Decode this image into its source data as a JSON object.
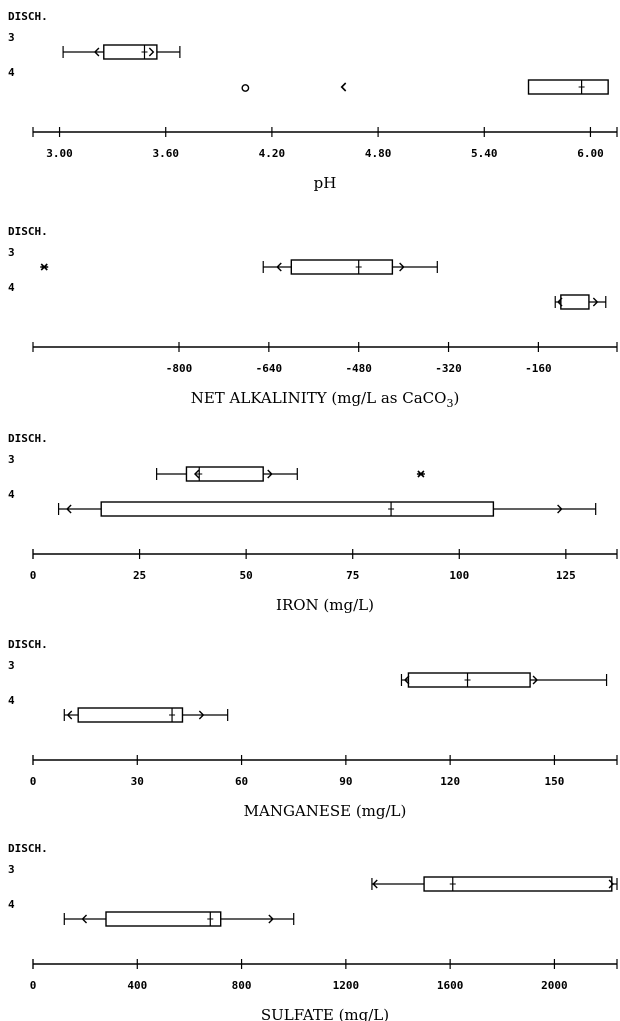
{
  "chart_data": [
    {
      "type": "boxplot",
      "row_header": "DISCH.",
      "categories": [
        "3",
        "4"
      ],
      "xlabel": "pH",
      "xlim": [
        2.85,
        6.15
      ],
      "ticks": [
        3.0,
        3.6,
        4.2,
        4.8,
        5.4,
        6.0
      ],
      "tick_labels": [
        "3.00",
        "3.60",
        "4.20",
        "4.80",
        "5.40",
        "6.00"
      ],
      "boxes": [
        {
          "category": "3",
          "whisker_low": 3.02,
          "q1": 3.25,
          "median": 3.48,
          "q3": 3.55,
          "whisker_high": 3.68,
          "lower_cap": 3.2,
          "upper_cap": 3.53
        },
        {
          "category": "4",
          "q1": 5.65,
          "median": 5.95,
          "q3": 6.1
        }
      ],
      "outliers": [
        {
          "category": "4",
          "value": 4.05,
          "marker": "o"
        },
        {
          "category": "4",
          "value": 4.6,
          "marker": "<"
        }
      ]
    },
    {
      "type": "boxplot",
      "row_header": "DISCH.",
      "categories": [
        "3",
        "4"
      ],
      "xlabel": "NET ALKALINITY (mg/L as CaCO",
      "xlabel_sub": "3",
      "xlabel_end": ")",
      "xlim": [
        -1060,
        -20
      ],
      "ticks": [
        -800,
        -640,
        -480,
        -320,
        -160
      ],
      "tick_labels": [
        "-800",
        "-640",
        "-480",
        "-320",
        "-160"
      ],
      "boxes": [
        {
          "category": "3",
          "whisker_low": -650,
          "q1": -600,
          "median": -480,
          "q3": -420,
          "whisker_high": -340,
          "lower_cap": -625,
          "upper_cap": -400
        },
        {
          "category": "4",
          "whisker_low": -130,
          "q1": -120,
          "q3": -70,
          "whisker_high": -40,
          "lower_cap": -125,
          "upper_cap": -55
        }
      ],
      "outliers": [
        {
          "category": "3",
          "value": -1040,
          "marker": "*"
        }
      ]
    },
    {
      "type": "boxplot",
      "row_header": "DISCH.",
      "categories": [
        "3",
        "4"
      ],
      "xlabel": "IRON (mg/L)",
      "xlim": [
        0,
        137
      ],
      "ticks": [
        0,
        25,
        50,
        75,
        100,
        125
      ],
      "tick_labels": [
        "0",
        "25",
        "50",
        "75",
        "100",
        "125"
      ],
      "boxes": [
        {
          "category": "3",
          "whisker_low": 29,
          "q1": 36,
          "median": 39,
          "q3": 54,
          "whisker_high": 62,
          "lower_cap": 38,
          "upper_cap": 56
        },
        {
          "category": "4",
          "whisker_low": 6,
          "q1": 16,
          "median": 84,
          "q3": 108,
          "whisker_high": 132,
          "lower_cap": 8,
          "upper_cap": 124
        }
      ],
      "outliers": [
        {
          "category": "3",
          "value": 91,
          "marker": "*"
        }
      ]
    },
    {
      "type": "boxplot",
      "row_header": "DISCH.",
      "categories": [
        "3",
        "4"
      ],
      "xlabel": "MANGANESE (mg/L)",
      "xlim": [
        0,
        168
      ],
      "ticks": [
        0,
        30,
        60,
        90,
        120,
        150
      ],
      "tick_labels": [
        "0",
        "30",
        "60",
        "90",
        "120",
        "150"
      ],
      "boxes": [
        {
          "category": "3",
          "whisker_low": 106,
          "q1": 108,
          "median": 125,
          "q3": 143,
          "whisker_high": 165,
          "lower_cap": 107,
          "upper_cap": 145
        },
        {
          "category": "4",
          "whisker_low": 9,
          "q1": 13,
          "median": 40,
          "q3": 43,
          "whisker_high": 56,
          "lower_cap": 10,
          "upper_cap": 49
        }
      ],
      "outliers": []
    },
    {
      "type": "boxplot",
      "row_header": "DISCH.",
      "categories": [
        "3",
        "4"
      ],
      "xlabel": "SULFATE (mg/L)",
      "xlim": [
        0,
        2240
      ],
      "ticks": [
        0,
        400,
        800,
        1200,
        1600,
        2000
      ],
      "tick_labels": [
        "0",
        "400",
        "800",
        "1200",
        "1600",
        "2000"
      ],
      "boxes": [
        {
          "category": "3",
          "whisker_low": 1300,
          "q1": 1500,
          "median": 1610,
          "q3": 2220,
          "whisker_high": 2240,
          "lower_cap": 1305,
          "upper_cap": 2225
        },
        {
          "category": "4",
          "whisker_low": 120,
          "q1": 280,
          "median": 680,
          "q3": 720,
          "whisker_high": 1000,
          "lower_cap": 190,
          "upper_cap": 920
        }
      ],
      "outliers": []
    }
  ]
}
